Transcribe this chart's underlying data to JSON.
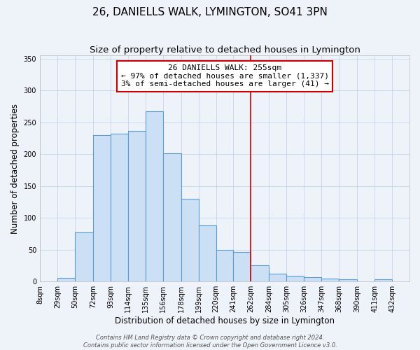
{
  "title": "26, DANIELLS WALK, LYMINGTON, SO41 3PN",
  "subtitle": "Size of property relative to detached houses in Lymington",
  "xlabel": "Distribution of detached houses by size in Lymington",
  "ylabel": "Number of detached properties",
  "bar_left_edges": [
    8,
    29,
    50,
    72,
    93,
    114,
    135,
    156,
    178,
    199,
    220,
    241,
    262,
    284,
    305,
    326,
    347,
    368,
    390,
    411
  ],
  "bar_widths": [
    21,
    21,
    22,
    21,
    21,
    21,
    21,
    22,
    21,
    21,
    21,
    21,
    22,
    21,
    21,
    21,
    21,
    22,
    21,
    21
  ],
  "bar_heights": [
    0,
    6,
    77,
    230,
    232,
    237,
    267,
    201,
    130,
    88,
    50,
    46,
    25,
    12,
    9,
    7,
    5,
    4,
    0,
    4
  ],
  "bar_color": "#cce0f5",
  "bar_edgecolor": "#5b9bd5",
  "bar_linewidth": 0.8,
  "vline_x": 262,
  "vline_color": "#cc0000",
  "vline_linewidth": 1.2,
  "ylim": [
    0,
    355
  ],
  "xlim": [
    8,
    453
  ],
  "yticks": [
    0,
    50,
    100,
    150,
    200,
    250,
    300,
    350
  ],
  "xtick_labels": [
    "8sqm",
    "29sqm",
    "50sqm",
    "72sqm",
    "93sqm",
    "114sqm",
    "135sqm",
    "156sqm",
    "178sqm",
    "199sqm",
    "220sqm",
    "241sqm",
    "262sqm",
    "284sqm",
    "305sqm",
    "326sqm",
    "347sqm",
    "368sqm",
    "390sqm",
    "411sqm",
    "432sqm"
  ],
  "xtick_positions": [
    8,
    29,
    50,
    72,
    93,
    114,
    135,
    156,
    178,
    199,
    220,
    241,
    262,
    284,
    305,
    326,
    347,
    368,
    390,
    411,
    432
  ],
  "annotation_title": "26 DANIELLS WALK: 255sqm",
  "annotation_line1": "← 97% of detached houses are smaller (1,337)",
  "annotation_line2": "3% of semi-detached houses are larger (41) →",
  "grid_color": "#c8d4e8",
  "background_color": "#eef2f9",
  "plot_background": "#eef2f9",
  "footer_line1": "Contains HM Land Registry data © Crown copyright and database right 2024.",
  "footer_line2": "Contains public sector information licensed under the Open Government Licence v3.0.",
  "title_fontsize": 11,
  "subtitle_fontsize": 9.5,
  "axis_label_fontsize": 8.5,
  "tick_fontsize": 7,
  "ann_fontsize": 8,
  "footer_fontsize": 6
}
